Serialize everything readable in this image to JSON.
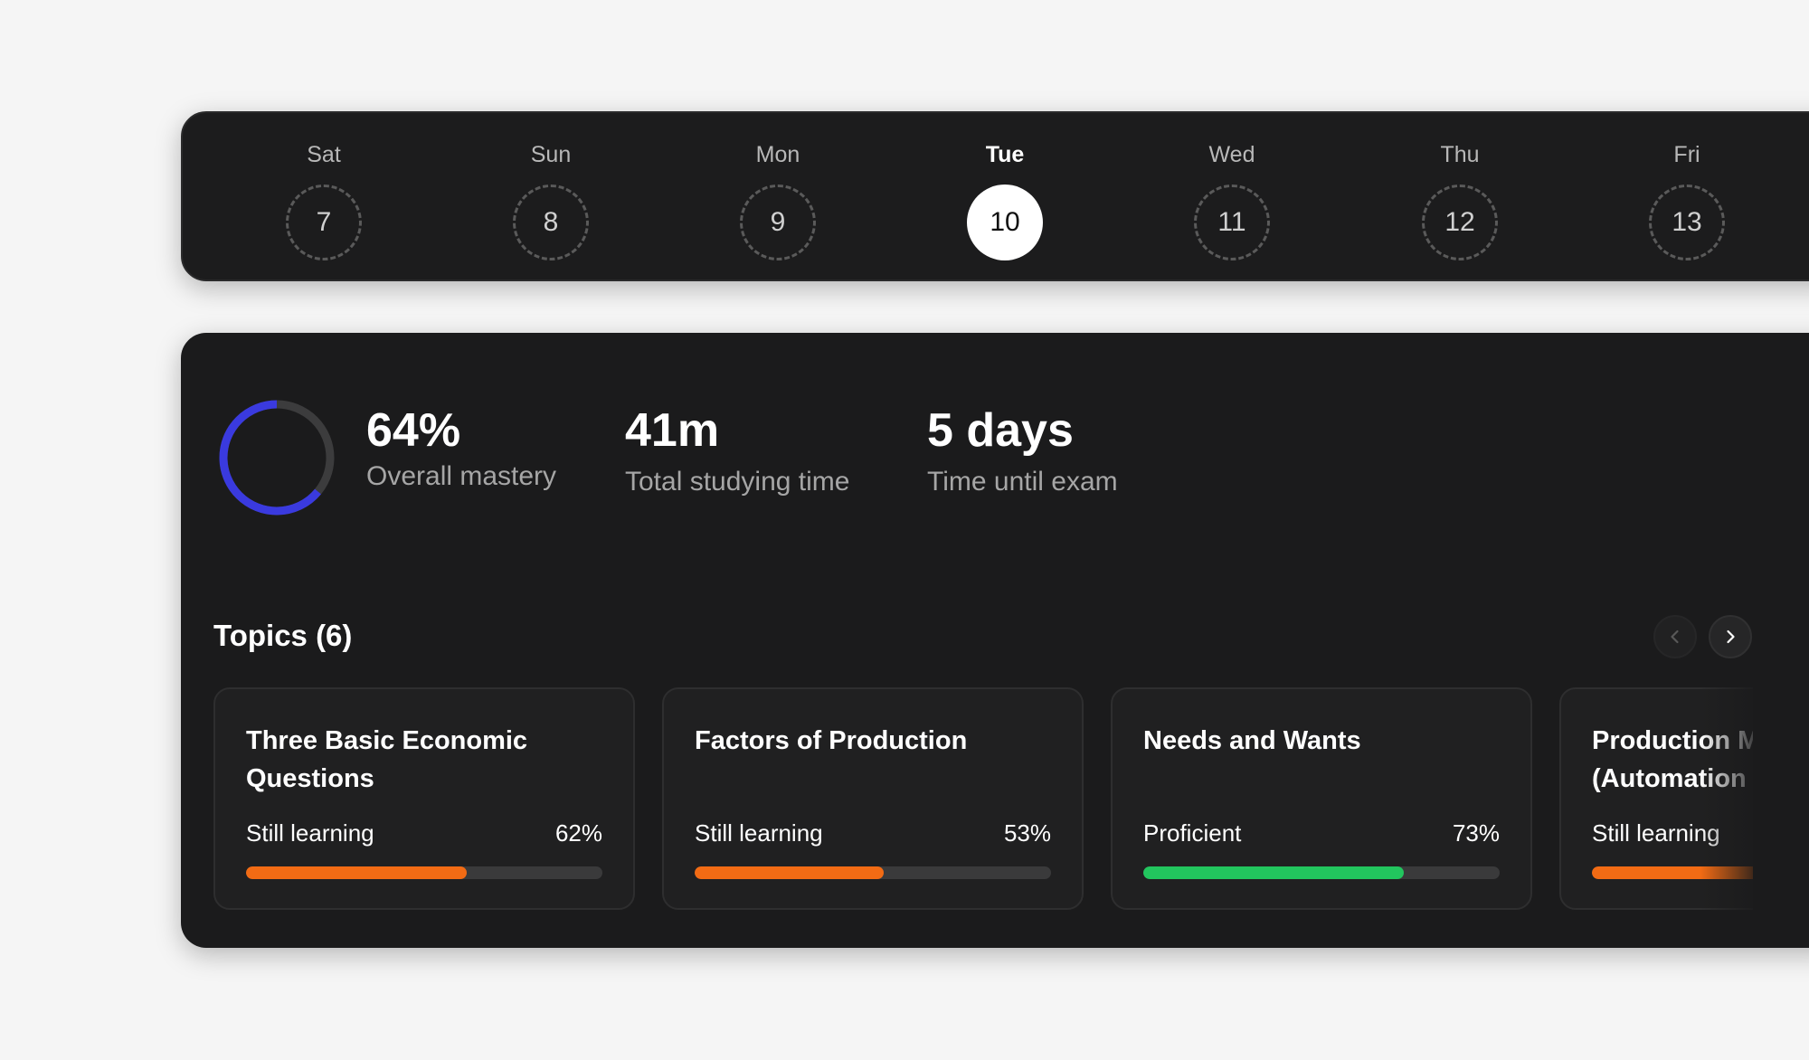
{
  "week": {
    "days": [
      {
        "name": "Sat",
        "date": "7",
        "active": false
      },
      {
        "name": "Sun",
        "date": "8",
        "active": false
      },
      {
        "name": "Mon",
        "date": "9",
        "active": false
      },
      {
        "name": "Tue",
        "date": "10",
        "active": true
      },
      {
        "name": "Wed",
        "date": "11",
        "active": false
      },
      {
        "name": "Thu",
        "date": "12",
        "active": false
      },
      {
        "name": "Fri",
        "date": "13",
        "active": false
      }
    ]
  },
  "stats": {
    "mastery": {
      "value": "64%",
      "label": "Overall mastery",
      "fraction": 0.64,
      "color": "#3a3adf"
    },
    "study_time": {
      "value": "41m",
      "label": "Total studying time"
    },
    "exam": {
      "value": "5 days",
      "label": "Time until exam"
    }
  },
  "topics": {
    "title": "Topics (6)",
    "items": [
      {
        "title_lines": [
          "Three Basic Economic",
          "Questions"
        ],
        "status": "Still learning",
        "percent": "62%",
        "progress": 0.62,
        "color": "#f26b14"
      },
      {
        "title_lines": [
          "Factors of Production",
          ""
        ],
        "status": "Still learning",
        "percent": "53%",
        "progress": 0.53,
        "color": "#f26b14"
      },
      {
        "title_lines": [
          "Needs and Wants",
          ""
        ],
        "status": "Proficient",
        "percent": "73%",
        "progress": 0.73,
        "color": "#22c55e"
      },
      {
        "title_lines": [
          "Production M",
          "(Automation"
        ],
        "status": "Still learning",
        "percent": "",
        "progress": 0.6,
        "color": "#f26b14"
      }
    ]
  },
  "colors": {
    "ring_track": "#3c3c3d",
    "accent_orange": "#f26b14",
    "accent_green": "#22c55e",
    "accent_blue": "#3a3adf"
  },
  "icons": {
    "prev": "chevron-left-icon",
    "next": "chevron-right-icon"
  }
}
